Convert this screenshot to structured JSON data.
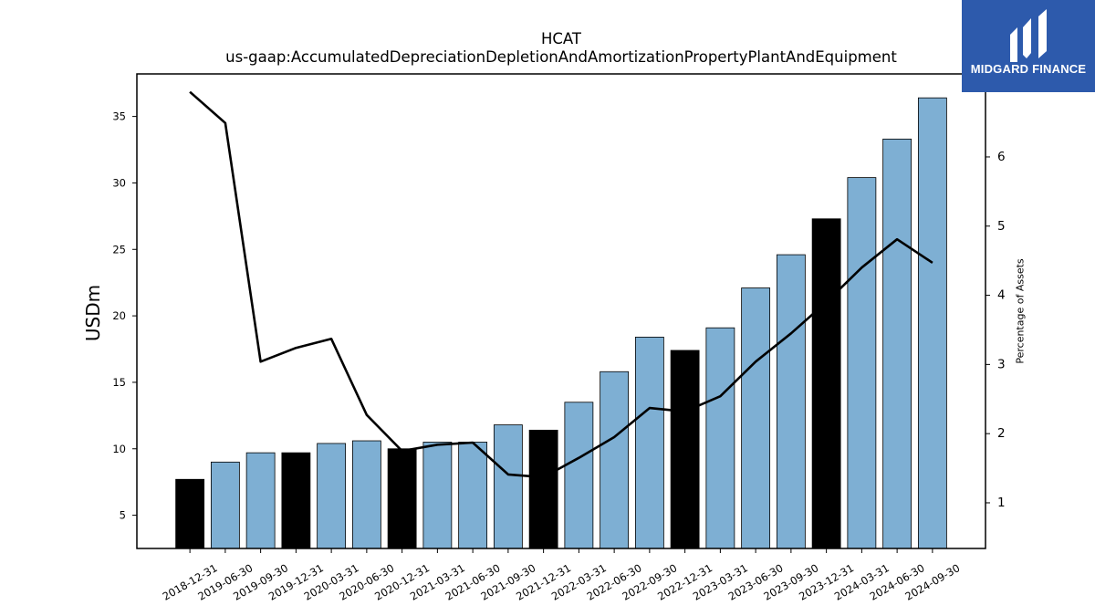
{
  "logo": {
    "text": "MIDGARD FINANCE",
    "icon": "midgard-logo-icon",
    "background": "#2d5aac"
  },
  "chart_data": {
    "type": "bar",
    "title": "HCAT",
    "subtitle": "us-gaap:AccumulatedDepreciationDepletionAndAmortizationPropertyPlantAndEquipment",
    "xlabel": "",
    "ylabel": "USDm",
    "y2label": "Percentage of Assets",
    "categories": [
      "2018-12-31",
      "2019-06-30",
      "2019-09-30",
      "2019-12-31",
      "2020-03-31",
      "2020-06-30",
      "2020-12-31",
      "2021-03-31",
      "2021-06-30",
      "2021-09-30",
      "2021-12-31",
      "2022-03-31",
      "2022-06-30",
      "2022-09-30",
      "2022-12-31",
      "2023-03-31",
      "2023-06-30",
      "2023-09-30",
      "2023-12-31",
      "2024-03-31",
      "2024-06-30",
      "2024-09-30"
    ],
    "ylim": [
      2.5,
      38.2
    ],
    "yticks": [
      5,
      10,
      15,
      20,
      25,
      30,
      35
    ],
    "y2lim": [
      0.34,
      7.2
    ],
    "y2ticks": [
      1,
      2,
      3,
      4,
      5,
      6
    ],
    "grid": false,
    "series": [
      {
        "type": "bar",
        "axis": "left",
        "values": [
          7.7,
          9.0,
          9.7,
          9.7,
          10.4,
          10.6,
          10.0,
          10.5,
          10.5,
          11.8,
          11.4,
          13.5,
          15.8,
          18.4,
          17.4,
          19.1,
          22.1,
          24.6,
          27.3,
          30.4,
          33.3,
          36.4
        ],
        "colors": [
          "#000000",
          "#7eafd3",
          "#7eafd3",
          "#000000",
          "#7eafd3",
          "#7eafd3",
          "#000000",
          "#7eafd3",
          "#7eafd3",
          "#7eafd3",
          "#000000",
          "#7eafd3",
          "#7eafd3",
          "#7eafd3",
          "#000000",
          "#7eafd3",
          "#7eafd3",
          "#7eafd3",
          "#000000",
          "#7eafd3",
          "#7eafd3",
          "#7eafd3"
        ],
        "edgecolor": "#000000"
      },
      {
        "type": "line",
        "axis": "right",
        "values": [
          6.94,
          6.49,
          3.04,
          3.24,
          3.37,
          2.27,
          1.75,
          1.84,
          1.87,
          1.41,
          1.37,
          1.65,
          1.95,
          2.37,
          2.32,
          2.54,
          3.04,
          3.45,
          3.9,
          4.4,
          4.81,
          4.47
        ],
        "color": "#000000"
      }
    ]
  }
}
